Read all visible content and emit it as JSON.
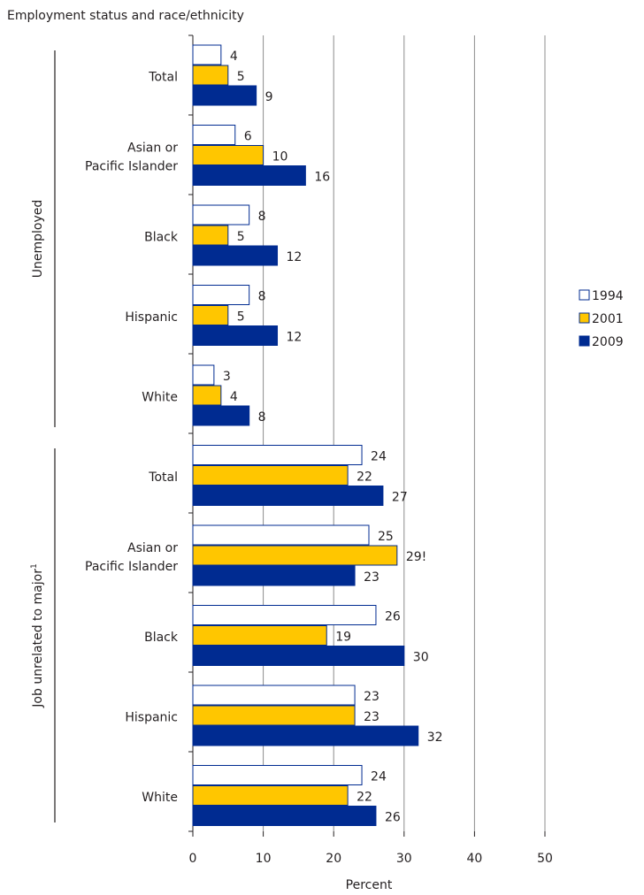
{
  "chart_data": {
    "type": "bar",
    "orientation": "horizontal",
    "title": "Employment status and race/ethnicity",
    "xlabel": "Percent",
    "xlim": [
      0,
      50
    ],
    "xticks": [
      0,
      10,
      20,
      30,
      40,
      50
    ],
    "grid": true,
    "legend_position": "right",
    "colors": {
      "1994": "#ffffff",
      "2001": "#ffc600",
      "2009": "#002b91",
      "outline": "#002b91"
    },
    "groups": [
      {
        "name": "Unemployed",
        "categories": [
          {
            "label": [
              "Total"
            ],
            "values": [
              4,
              5,
              9
            ],
            "labels": [
              "4",
              "5",
              "9"
            ]
          },
          {
            "label": [
              "Asian or",
              "Pacific Islander"
            ],
            "values": [
              6,
              10,
              16
            ],
            "labels": [
              "6",
              "10",
              "16"
            ]
          },
          {
            "label": [
              "Black"
            ],
            "values": [
              8,
              5,
              12
            ],
            "labels": [
              "8",
              "5",
              "12"
            ]
          },
          {
            "label": [
              "Hispanic"
            ],
            "values": [
              8,
              5,
              12
            ],
            "labels": [
              "8",
              "5",
              "12"
            ]
          },
          {
            "label": [
              "White"
            ],
            "values": [
              3,
              4,
              8
            ],
            "labels": [
              "3",
              "4",
              "8"
            ]
          }
        ]
      },
      {
        "name": "Job unrelated to major",
        "name_sup": "1",
        "categories": [
          {
            "label": [
              "Total"
            ],
            "values": [
              24,
              22,
              27
            ],
            "labels": [
              "24",
              "22",
              "27"
            ]
          },
          {
            "label": [
              "Asian or",
              "Pacific Islander"
            ],
            "values": [
              25,
              29,
              23
            ],
            "labels": [
              "25",
              "29!",
              "23"
            ]
          },
          {
            "label": [
              "Black"
            ],
            "values": [
              26,
              19,
              30
            ],
            "labels": [
              "26",
              "19",
              "30"
            ]
          },
          {
            "label": [
              "Hispanic"
            ],
            "values": [
              23,
              23,
              32
            ],
            "labels": [
              "23",
              "23",
              "32"
            ]
          },
          {
            "label": [
              "White"
            ],
            "values": [
              24,
              22,
              26
            ],
            "labels": [
              "24",
              "22",
              "26"
            ]
          }
        ]
      }
    ],
    "series": [
      {
        "name": "1994"
      },
      {
        "name": "2001"
      },
      {
        "name": "2009"
      }
    ]
  }
}
